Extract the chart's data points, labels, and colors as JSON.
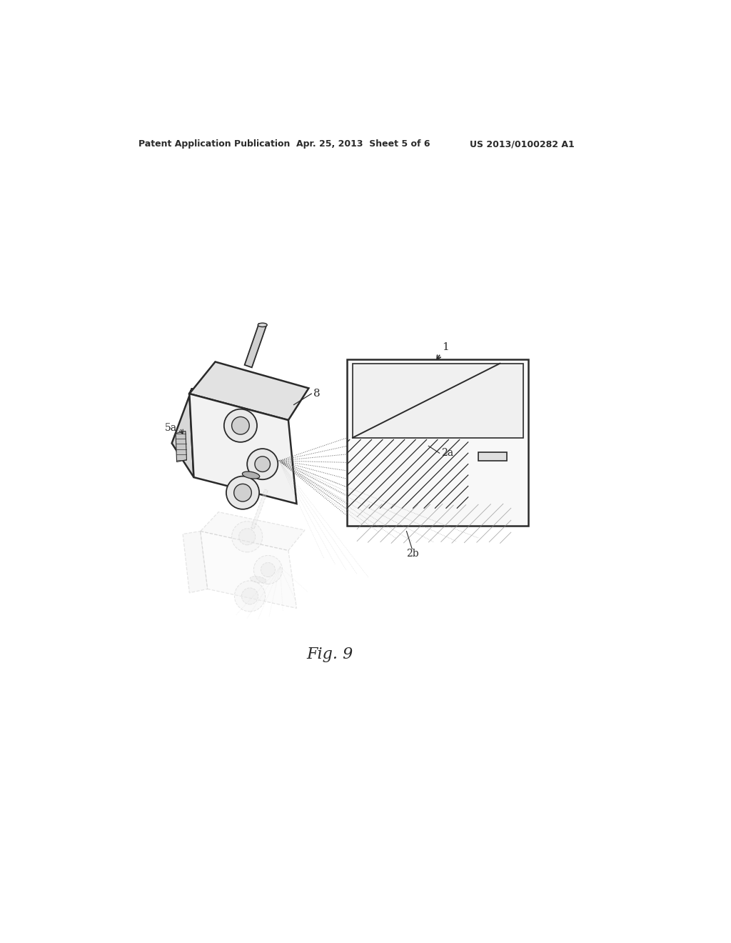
{
  "header_left": "Patent Application Publication",
  "header_mid": "Apr. 25, 2013  Sheet 5 of 6",
  "header_right": "US 2013/0100282 A1",
  "fig_label": "Fig. 9",
  "bg_color": "#ffffff",
  "line_color": "#2a2a2a",
  "ghost_color": "#bbbbbb",
  "beam_color": "#444444",
  "crosshatch_color": "#2a2a2a",
  "ghost_ch_color": "#aaaaaa"
}
